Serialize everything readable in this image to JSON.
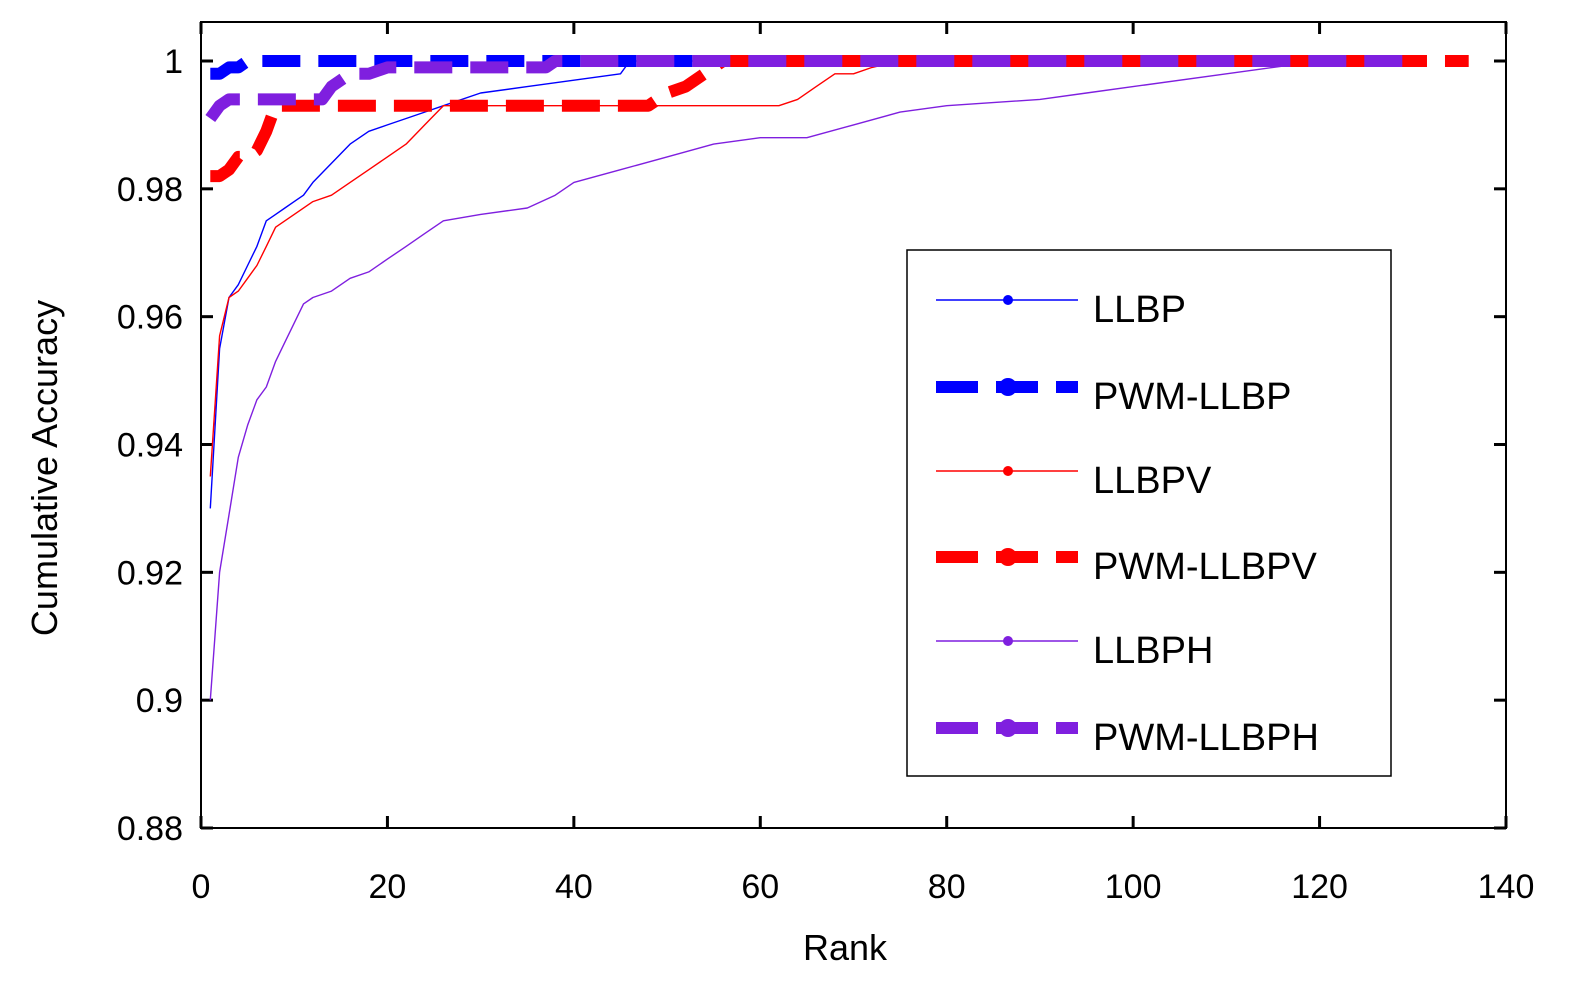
{
  "chart_data": {
    "type": "line",
    "title": "",
    "xlabel": "Rank",
    "ylabel": "Cumulative Accuracy",
    "xlim": [
      0,
      140
    ],
    "ylim": [
      0.88,
      1.0
    ],
    "xticks": [
      0,
      20,
      40,
      60,
      80,
      100,
      120,
      140
    ],
    "xtick_labels": [
      "0",
      "20",
      "40",
      "60",
      "80",
      "100",
      "120",
      "140"
    ],
    "yticks": [
      0.88,
      0.9,
      0.92,
      0.94,
      0.96,
      0.98,
      1.0
    ],
    "ytick_labels": [
      "0.88",
      "0.9",
      "0.92",
      "0.94",
      "0.96",
      "0.98",
      "1"
    ],
    "grid": false,
    "legend_position": "center-right",
    "series": [
      {
        "name": "LLBP",
        "color": "#0000ff",
        "style": "thin",
        "x": [
          1,
          2,
          3,
          4,
          5,
          6,
          7,
          8,
          9,
          10,
          11,
          12,
          14,
          16,
          18,
          20,
          22,
          24,
          26,
          30,
          35,
          40,
          45,
          46,
          130
        ],
        "y": [
          0.93,
          0.955,
          0.963,
          0.965,
          0.968,
          0.971,
          0.975,
          0.976,
          0.977,
          0.978,
          0.979,
          0.981,
          0.984,
          0.987,
          0.989,
          0.99,
          0.991,
          0.992,
          0.993,
          0.995,
          0.996,
          0.997,
          0.998,
          1.0,
          1.0
        ]
      },
      {
        "name": "PWM-LLBP",
        "color": "#0000ff",
        "style": "thick-dashed",
        "x": [
          1,
          2,
          3,
          4,
          5,
          130
        ],
        "y": [
          0.998,
          0.998,
          0.999,
          0.999,
          1.0,
          1.0
        ]
      },
      {
        "name": "LLBPV",
        "color": "#ff0000",
        "style": "thin",
        "x": [
          1,
          2,
          3,
          4,
          5,
          6,
          7,
          8,
          9,
          10,
          12,
          14,
          16,
          18,
          20,
          22,
          24,
          26,
          30,
          40,
          50,
          62,
          64,
          66,
          68,
          70,
          72,
          75,
          130
        ],
        "y": [
          0.935,
          0.957,
          0.963,
          0.964,
          0.966,
          0.968,
          0.971,
          0.974,
          0.975,
          0.976,
          0.978,
          0.979,
          0.981,
          0.983,
          0.985,
          0.987,
          0.99,
          0.993,
          0.993,
          0.993,
          0.993,
          0.993,
          0.994,
          0.996,
          0.998,
          0.998,
          0.999,
          1.0,
          1.0
        ]
      },
      {
        "name": "PWM-LLBPV",
        "color": "#ff0000",
        "style": "thick-dashed",
        "x": [
          1,
          2,
          3,
          4,
          5,
          6,
          7,
          8,
          9,
          48,
          50,
          52,
          54,
          56,
          136
        ],
        "y": [
          0.982,
          0.982,
          0.983,
          0.985,
          0.985,
          0.986,
          0.989,
          0.993,
          0.993,
          0.993,
          0.995,
          0.996,
          0.998,
          1.0,
          1.0
        ]
      },
      {
        "name": "LLBPH",
        "color": "#7f1fdf",
        "style": "thin",
        "x": [
          1,
          2,
          3,
          4,
          5,
          6,
          7,
          8,
          9,
          10,
          11,
          12,
          14,
          16,
          18,
          20,
          22,
          24,
          26,
          30,
          35,
          38,
          40,
          45,
          50,
          55,
          60,
          65,
          70,
          75,
          80,
          90,
          95,
          100,
          110,
          115,
          120,
          123,
          130
        ],
        "y": [
          0.9,
          0.92,
          0.929,
          0.938,
          0.943,
          0.947,
          0.949,
          0.953,
          0.956,
          0.959,
          0.962,
          0.963,
          0.964,
          0.966,
          0.967,
          0.969,
          0.971,
          0.973,
          0.975,
          0.976,
          0.977,
          0.979,
          0.981,
          0.983,
          0.985,
          0.987,
          0.988,
          0.988,
          0.99,
          0.992,
          0.993,
          0.994,
          0.995,
          0.996,
          0.998,
          0.999,
          1.0,
          1.0,
          1.0
        ]
      },
      {
        "name": "PWM-LLBPH",
        "color": "#7f1fdf",
        "style": "thick-dashed",
        "x": [
          1,
          2,
          3,
          12,
          13,
          14,
          15,
          16,
          18,
          20,
          36,
          37,
          38,
          130
        ],
        "y": [
          0.991,
          0.993,
          0.994,
          0.994,
          0.994,
          0.996,
          0.997,
          0.998,
          0.998,
          0.999,
          0.999,
          0.999,
          1.0,
          1.0
        ]
      }
    ]
  }
}
